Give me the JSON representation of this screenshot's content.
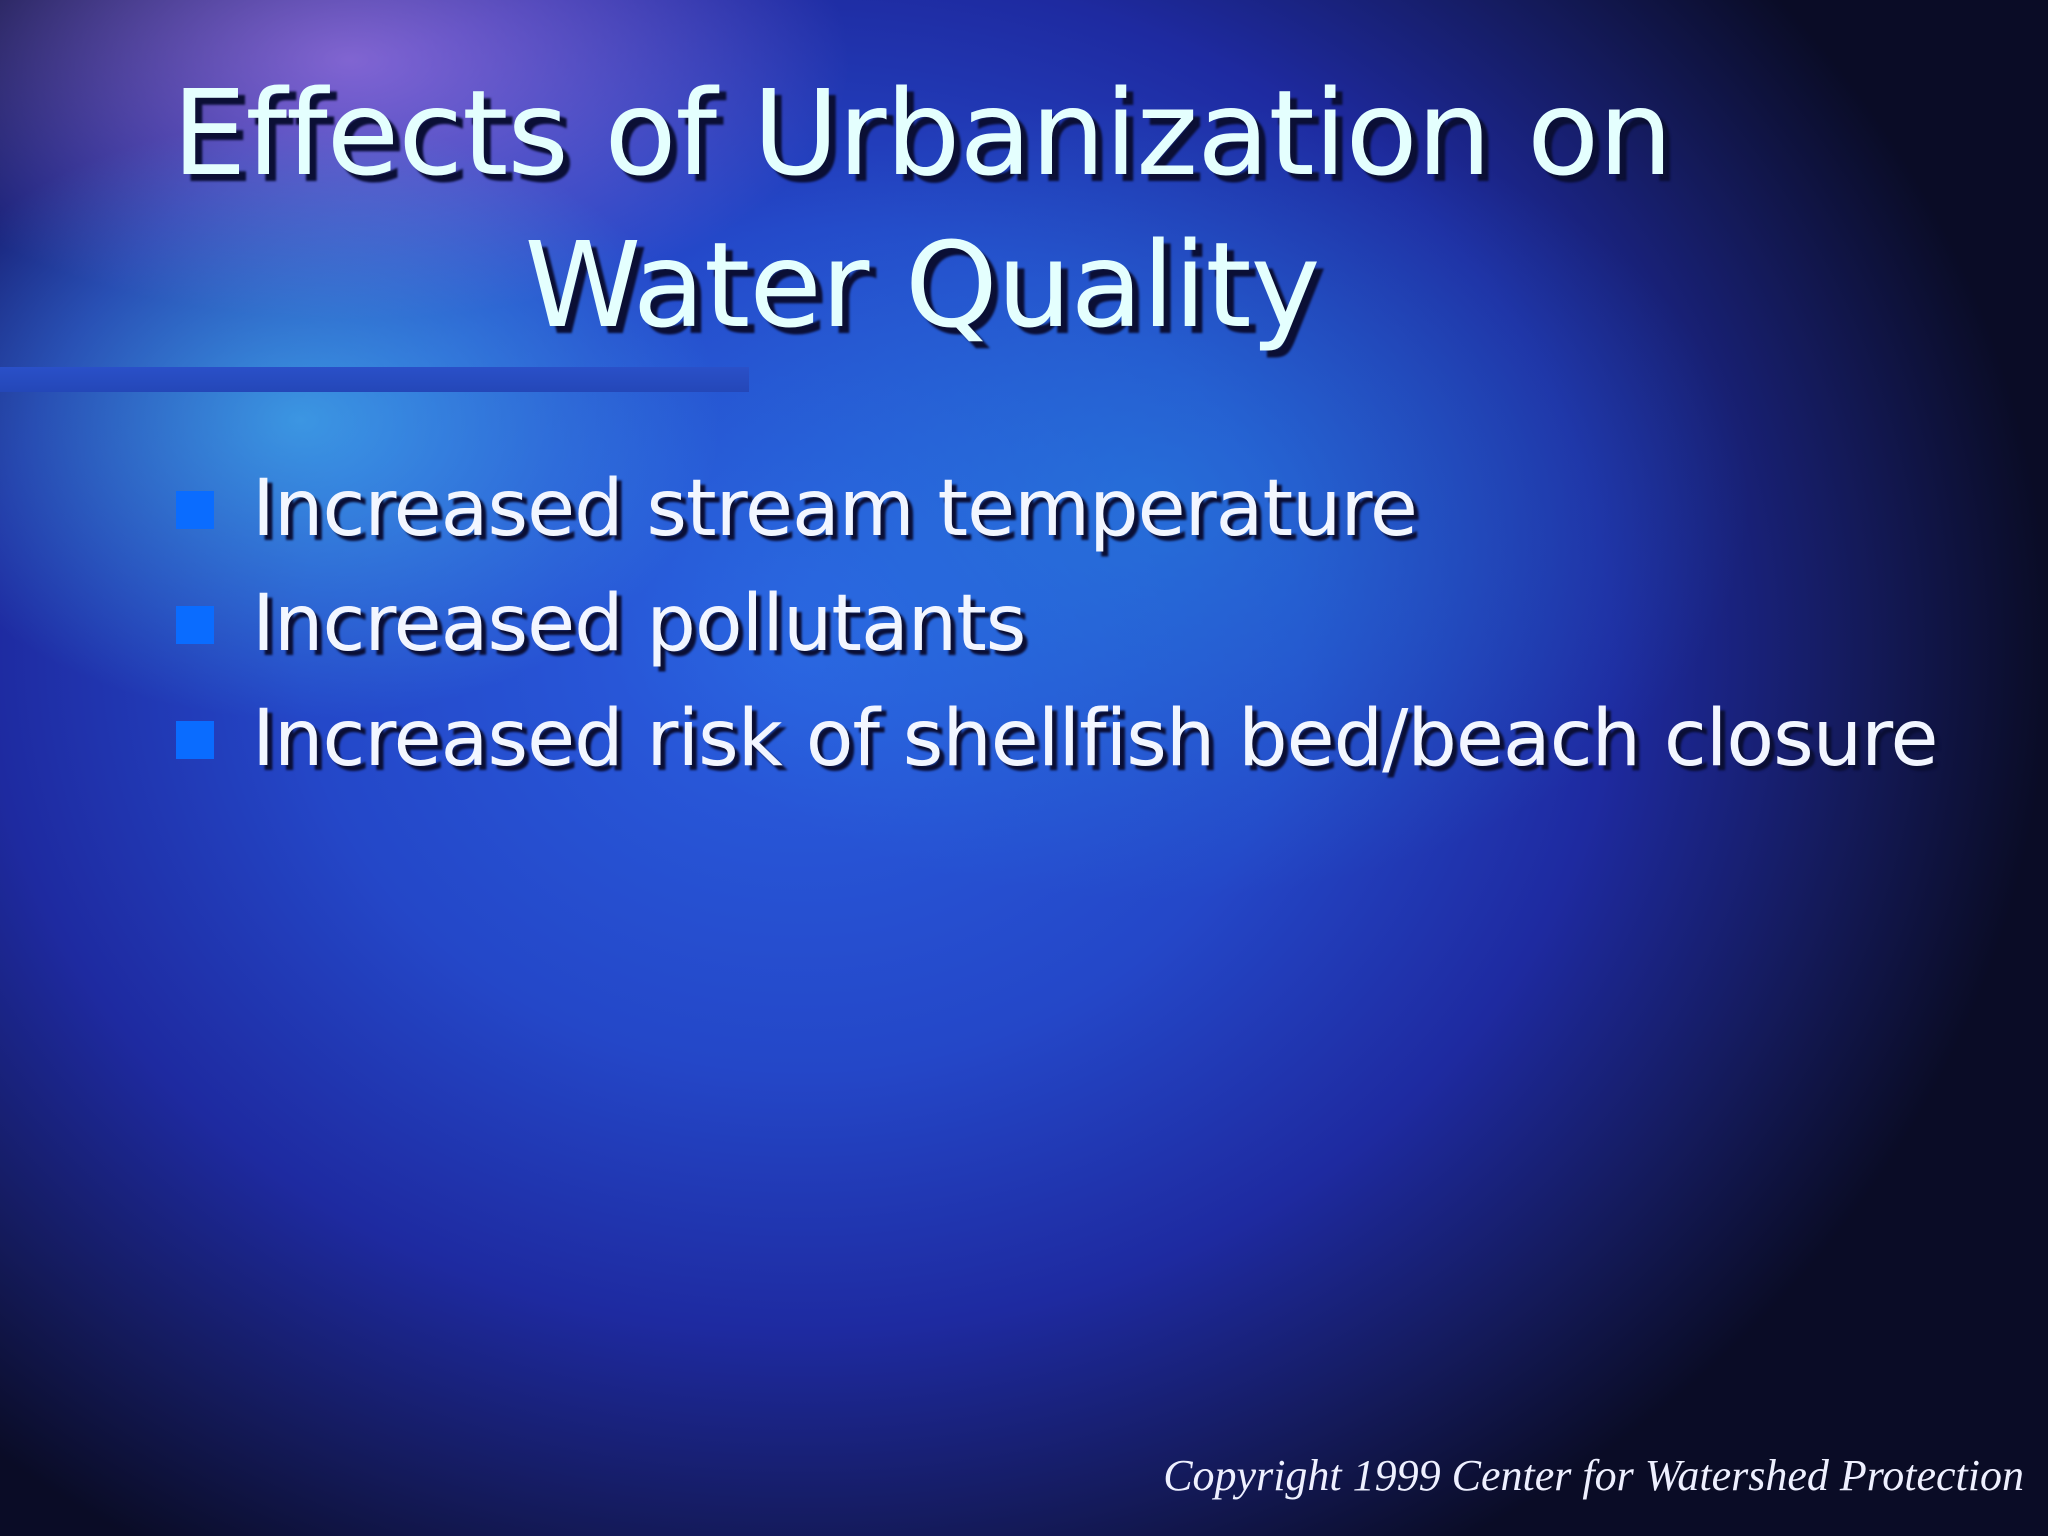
{
  "slide": {
    "title": [
      "Effects of Urbanization on",
      "Water Quality"
    ],
    "bullets": [
      "Increased stream temperature",
      "Increased pollutants",
      "Increased risk of shellfish bed/beach closure"
    ],
    "footer": "Copyright 1999 Center for Watershed Protection"
  }
}
